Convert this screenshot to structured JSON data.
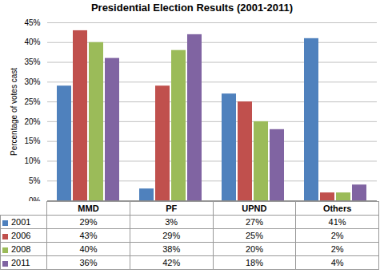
{
  "chart_data": {
    "type": "bar",
    "title": "Presidential Election Results (2001-2011)",
    "y_label": "Percentage of votes cast",
    "categories": [
      "MMD",
      "PF",
      "UPND",
      "Others"
    ],
    "series": [
      {
        "name": "2001",
        "color": "#4f81bd",
        "values": [
          29,
          3,
          27,
          41
        ],
        "value_labels": [
          "29%",
          "3%",
          "27%",
          "41%"
        ]
      },
      {
        "name": "2006",
        "color": "#c0504d",
        "values": [
          43,
          29,
          25,
          2
        ],
        "value_labels": [
          "43%",
          "29%",
          "25%",
          "2%"
        ]
      },
      {
        "name": "2008",
        "color": "#9bbb59",
        "values": [
          40,
          38,
          20,
          2
        ],
        "value_labels": [
          "40%",
          "38%",
          "20%",
          "2%"
        ]
      },
      {
        "name": "2011",
        "color": "#8064a2",
        "values": [
          36,
          42,
          18,
          4
        ],
        "value_labels": [
          "36%",
          "42%",
          "18%",
          "4%"
        ]
      }
    ],
    "ylim": [
      0,
      45
    ],
    "yticks": [
      {
        "value": 0,
        "label": "0%"
      },
      {
        "value": 5,
        "label": "5%"
      },
      {
        "value": 10,
        "label": "10%"
      },
      {
        "value": 15,
        "label": "15%"
      },
      {
        "value": 20,
        "label": "20%"
      },
      {
        "value": 25,
        "label": "25%"
      },
      {
        "value": 30,
        "label": "30%"
      },
      {
        "value": 35,
        "label": "35%"
      },
      {
        "value": 40,
        "label": "40%"
      },
      {
        "value": 45,
        "label": "45%"
      }
    ],
    "grid": true
  }
}
